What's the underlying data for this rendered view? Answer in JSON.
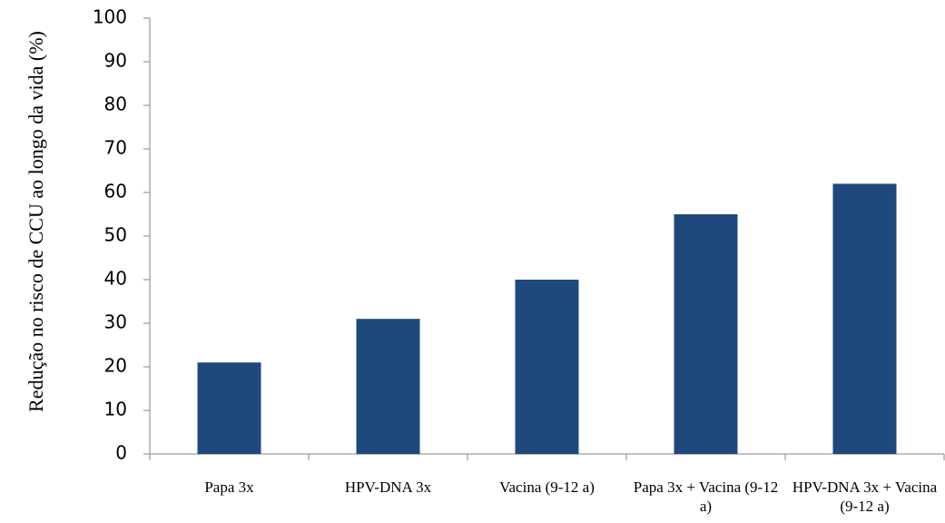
{
  "chart_data": {
    "type": "bar",
    "y_label": "Redução no risco de CCU ao longo da vida (%)",
    "categories": [
      "Papa 3x",
      "HPV-DNA 3x",
      "Vacina (9-12 a)",
      "Papa 3x + Vacina (9-12 a)",
      "HPV-DNA 3x + Vacina (9-12 a)"
    ],
    "values": [
      21,
      31,
      40,
      55,
      62
    ],
    "color": "#1f497d",
    "ylim": [
      0,
      100
    ],
    "yticks": [
      0,
      10,
      20,
      30,
      40,
      50,
      60,
      70,
      80,
      90,
      100
    ],
    "grid": false
  }
}
